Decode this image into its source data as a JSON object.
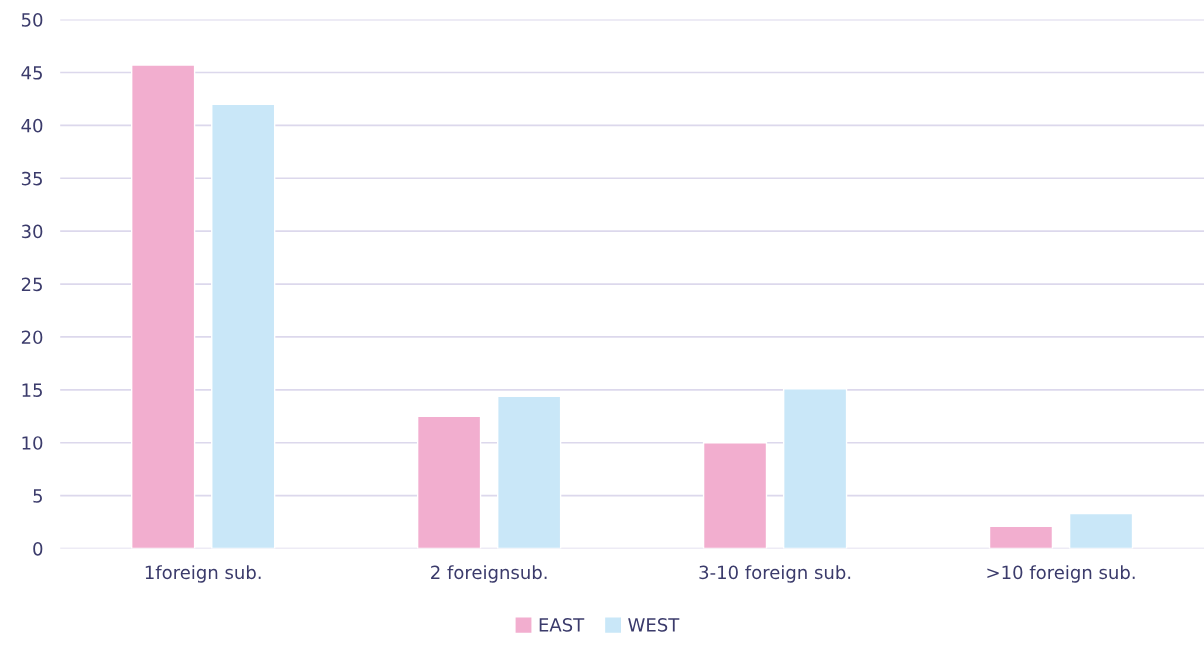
{
  "chart_data": {
    "type": "bar",
    "categories": [
      "1foreign sub.",
      "2 foreignsub.",
      "3-10 foreign sub.",
      ">10 foreign sub."
    ],
    "series": [
      {
        "name": "EAST",
        "color": "#f2aecf",
        "values": [
          45.7,
          12.5,
          10.0,
          2.1
        ]
      },
      {
        "name": "WEST",
        "color": "#c9e7f8",
        "values": [
          42.0,
          14.4,
          15.1,
          3.3
        ]
      }
    ],
    "ylim": [
      0,
      50
    ],
    "yticks": [
      0,
      5,
      10,
      15,
      20,
      25,
      30,
      35,
      40,
      45,
      50
    ],
    "grid": "y",
    "legend": "bottom"
  }
}
